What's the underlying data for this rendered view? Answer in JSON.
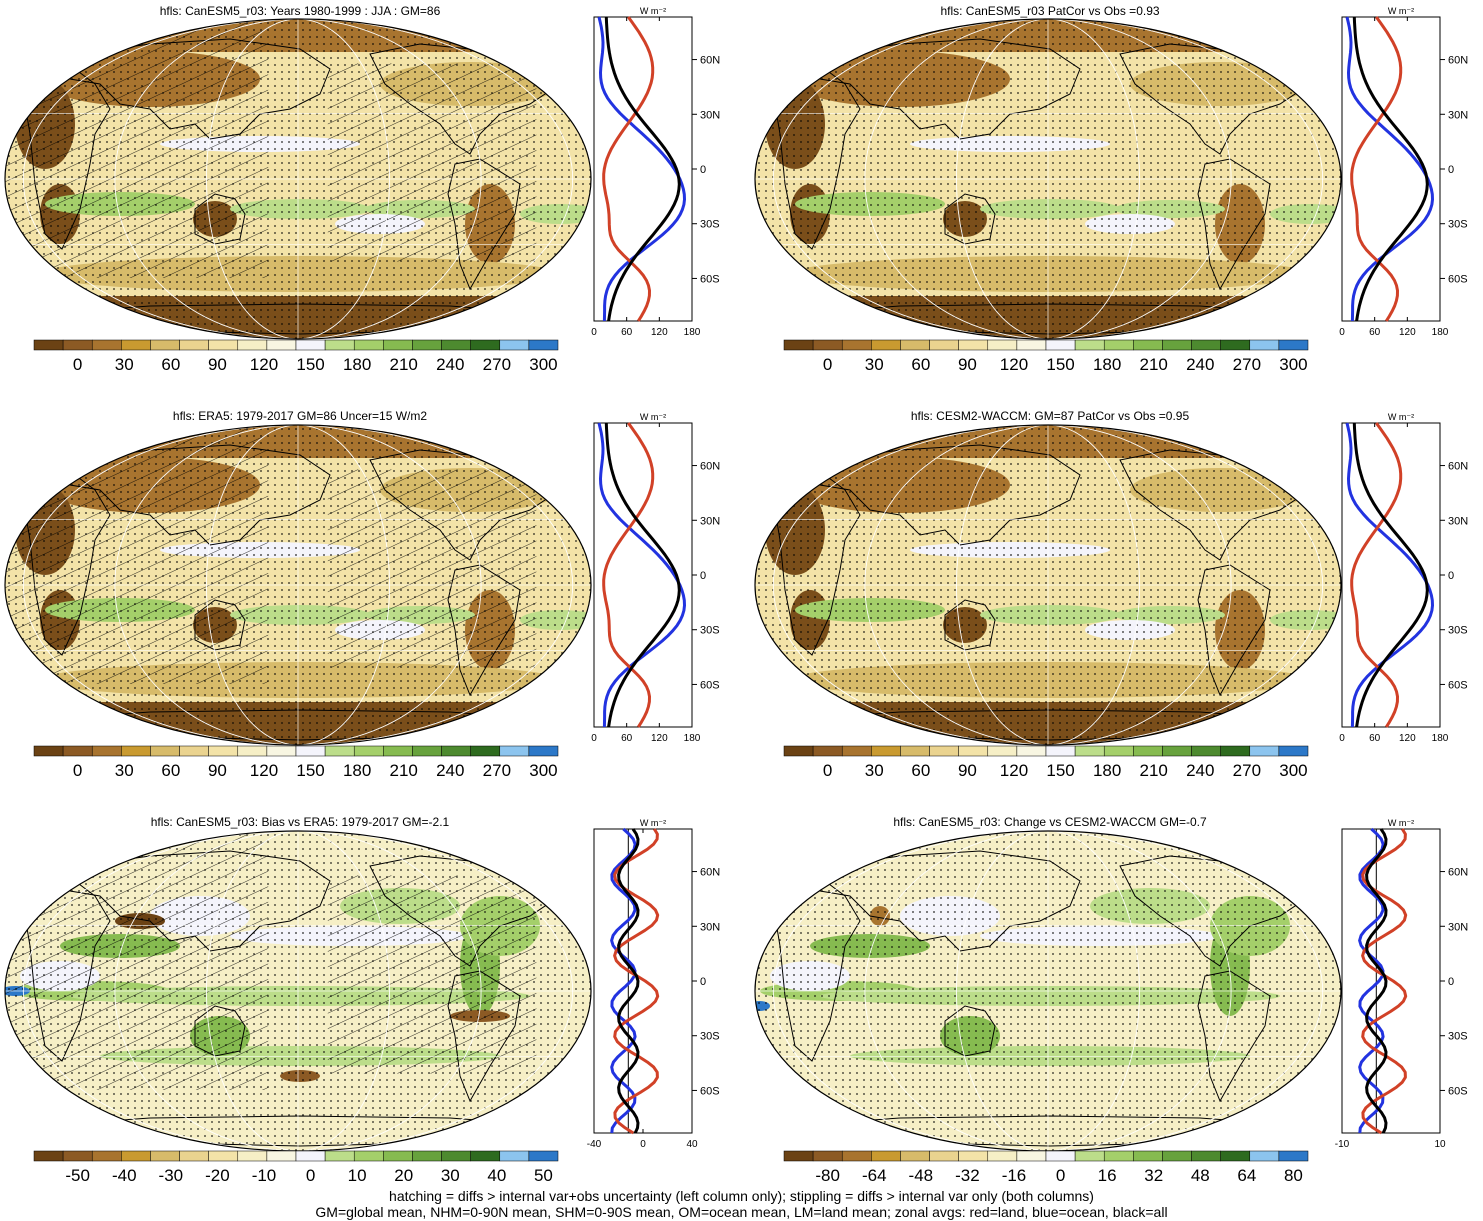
{
  "panels": [
    {
      "title": "hfls: CanESM5_r03: Years 1980-1999 : JJA : GM=86",
      "kind": "abs",
      "hatch": true,
      "cbar": [
        "0",
        "30",
        "60",
        "90",
        "120",
        "150",
        "180",
        "210",
        "240",
        "270",
        "300"
      ],
      "zonal_ticks": [
        "0",
        "60",
        "120",
        "180"
      ],
      "zonal_unit": "W m⁻²"
    },
    {
      "title": "hfls: CanESM5_r03 PatCor vs Obs =0.93",
      "kind": "abs",
      "hatch": false,
      "cbar": [
        "0",
        "30",
        "60",
        "90",
        "120",
        "150",
        "180",
        "210",
        "240",
        "270",
        "300"
      ],
      "zonal_ticks": [
        "0",
        "60",
        "120",
        "180"
      ],
      "zonal_unit": "W m⁻²"
    },
    {
      "title": "hfls: ERA5: 1979-2017 GM=86 Uncer=15 W/m2",
      "kind": "abs",
      "hatch": true,
      "cbar": [
        "0",
        "30",
        "60",
        "90",
        "120",
        "150",
        "180",
        "210",
        "240",
        "270",
        "300"
      ],
      "zonal_ticks": [
        "0",
        "60",
        "120",
        "180"
      ],
      "zonal_unit": "W m⁻²"
    },
    {
      "title": "hfls: CESM2-WACCM: GM=87 PatCor vs Obs =0.95",
      "kind": "abs",
      "hatch": false,
      "cbar": [
        "0",
        "30",
        "60",
        "90",
        "120",
        "150",
        "180",
        "210",
        "240",
        "270",
        "300"
      ],
      "zonal_ticks": [
        "0",
        "60",
        "120",
        "180"
      ],
      "zonal_unit": "W m⁻²"
    },
    {
      "title": "hfls: CanESM5_r03: Bias vs ERA5: 1979-2017 GM=-2.1",
      "kind": "diff",
      "hatch": true,
      "cbar": [
        "-50",
        "-40",
        "-30",
        "-20",
        "-10",
        "0",
        "10",
        "20",
        "30",
        "40",
        "50"
      ],
      "zonal_ticks": [
        "-40",
        "0",
        "40"
      ],
      "zonal_unit": "W m⁻²"
    },
    {
      "title": "hfls: CanESM5_r03: Change vs CESM2-WACCM GM=-0.7",
      "kind": "diff",
      "hatch": false,
      "cbar": [
        "-80",
        "-64",
        "-48",
        "-32",
        "-16",
        "0",
        "16",
        "32",
        "48",
        "64",
        "80"
      ],
      "zonal_ticks": [
        "-10",
        "10"
      ],
      "zonal_unit": "W m⁻²"
    }
  ],
  "lat_labels": [
    "60N",
    "30N",
    "0",
    "30S",
    "60S"
  ],
  "colors": {
    "abs": [
      "#6b4214",
      "#8c5a24",
      "#a8742f",
      "#c99a30",
      "#d7bb6a",
      "#ead38f",
      "#f3e3a8",
      "#f6efc6",
      "#f8f6e2",
      "#f4f4fb",
      "#bcdd8a",
      "#a4cf6a",
      "#86bb50",
      "#67a23d",
      "#4d8a2f",
      "#2e6b1f",
      "#8cc4ee",
      "#2c78c8"
    ],
    "diff": [
      "#6b4214",
      "#8c5a24",
      "#a8742f",
      "#c99a30",
      "#d7bb6a",
      "#ead38f",
      "#f3e3a8",
      "#f6efc6",
      "#f8f6e2",
      "#f4f4fb",
      "#bcdd8a",
      "#a4cf6a",
      "#86bb50",
      "#67a23d",
      "#4d8a2f",
      "#2e6b1f",
      "#8cc4ee",
      "#2c78c8"
    ],
    "land": "#d14127",
    "ocean": "#2233e0",
    "all": "#000000"
  },
  "footer": {
    "line1": "hatching = diffs > internal var+obs uncertainty (left column only); stippling = diffs > internal var only (both columns)",
    "line2": "GM=global mean, NHM=0-90N mean, SHM=0-90S mean, OM=ocean mean, LM=land mean; zonal avgs: red=land, blue=ocean, black=all"
  }
}
